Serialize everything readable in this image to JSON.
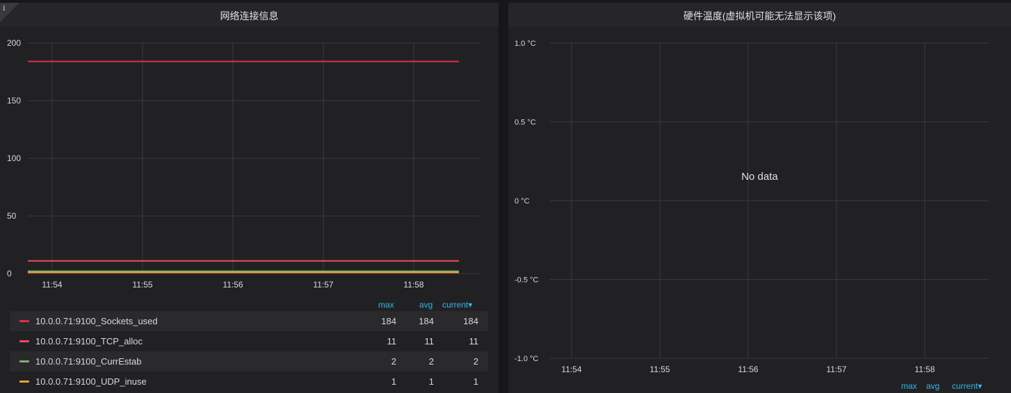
{
  "left_panel": {
    "title": "网络连接信息",
    "info_icon": "i",
    "legend": {
      "headers": [
        "max",
        "avg",
        "current▾"
      ],
      "rows": [
        {
          "name": "10.0.0.71:9100_Sockets_used",
          "max": "184",
          "avg": "184",
          "current": "184",
          "color": "#e02f44"
        },
        {
          "name": "10.0.0.71:9100_TCP_alloc",
          "max": "11",
          "avg": "11",
          "current": "11",
          "color": "#f2495c"
        },
        {
          "name": "10.0.0.71:9100_CurrEstab",
          "max": "2",
          "avg": "2",
          "current": "2",
          "color": "#7eb26d"
        },
        {
          "name": "10.0.0.71:9100_UDP_inuse",
          "max": "1",
          "avg": "1",
          "current": "1",
          "color": "#f2a03d"
        }
      ]
    }
  },
  "right_panel": {
    "title": "硬件温度(虚拟机可能无法显示该项)",
    "no_data": "No data",
    "legend": {
      "headers": [
        "max",
        "avg",
        "current▾"
      ]
    }
  },
  "chart_data": [
    {
      "type": "line",
      "title": "网络连接信息",
      "x_ticks": [
        "11:54",
        "11:55",
        "11:56",
        "11:57",
        "11:58"
      ],
      "y_ticks": [
        "0",
        "50",
        "100",
        "150",
        "200"
      ],
      "ylim": [
        0,
        200
      ],
      "grid": true,
      "series": [
        {
          "name": "10.0.0.71:9100_Sockets_used",
          "values": [
            184,
            184,
            184,
            184,
            184,
            184
          ],
          "color": "#e02f44"
        },
        {
          "name": "10.0.0.71:9100_TCP_alloc",
          "values": [
            11,
            11,
            11,
            11,
            11,
            11
          ],
          "color": "#f2495c"
        },
        {
          "name": "10.0.0.71:9100_CurrEstab",
          "values": [
            2,
            2,
            2,
            2,
            2,
            2
          ],
          "color": "#7eb26d"
        },
        {
          "name": "10.0.0.71:9100_UDP_inuse",
          "values": [
            1,
            1,
            1,
            1,
            1,
            1
          ],
          "color": "#f2a03d"
        }
      ],
      "legend_placement": "bottom"
    },
    {
      "type": "line",
      "title": "硬件温度(虚拟机可能无法显示该项)",
      "x_ticks": [
        "11:54",
        "11:55",
        "11:56",
        "11:57",
        "11:58"
      ],
      "y_ticks": [
        "-1.0 °C",
        "-0.5 °C",
        "0 °C",
        "0.5 °C",
        "1.0 °C"
      ],
      "ylim": [
        -1.0,
        1.0
      ],
      "grid": true,
      "series": []
    }
  ]
}
